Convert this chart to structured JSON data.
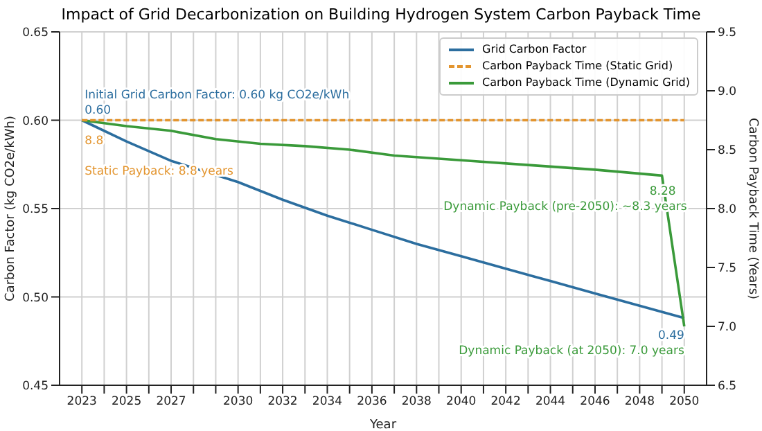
{
  "chart_data": {
    "type": "line",
    "title": "Impact of Grid Decarbonization on Building Hydrogen System Carbon Payback Time",
    "xlabel": "Year",
    "ylabel": "Carbon Factor (kg CO2e/kWh)",
    "y2label": "Carbon Payback Time (Years)",
    "x": [
      2023,
      2025,
      2027,
      2030,
      2032,
      2034,
      2036,
      2038,
      2040,
      2042,
      2044,
      2046,
      2048,
      2050
    ],
    "series": [
      {
        "name": "Grid Carbon Factor",
        "color": "#2c6e9f",
        "values": [
          0.6,
          0.588,
          0.577,
          0.565,
          0.555,
          0.546,
          0.538,
          0.53,
          0.523,
          0.516,
          0.509,
          0.502,
          0.495,
          0.488
        ],
        "value_labels": [
          "0.60",
          null,
          null,
          null,
          null,
          null,
          null,
          null,
          null,
          null,
          null,
          null,
          null,
          "0.49"
        ]
      },
      {
        "name": "Carbon Payback Time (Static Grid)",
        "color": "#e3952f",
        "axis": "y2",
        "line_style": "dashed",
        "x": [
          2023,
          2050
        ],
        "values": [
          8.75,
          8.75
        ],
        "value_labels": [
          "8.8",
          null
        ]
      },
      {
        "name": "Carbon Payback Time (Dynamic Grid)",
        "color": "#3a9a3a",
        "axis": "y2",
        "x": [
          2023,
          2025,
          2027,
          2029,
          2031,
          2033,
          2035,
          2037,
          2040,
          2043,
          2046,
          2049,
          2050
        ],
        "values": [
          8.75,
          8.7,
          8.66,
          8.59,
          8.55,
          8.53,
          8.5,
          8.45,
          8.41,
          8.37,
          8.33,
          8.28,
          7.0
        ],
        "value_labels": [
          null,
          null,
          null,
          null,
          null,
          null,
          null,
          null,
          null,
          null,
          null,
          "8.28",
          null
        ]
      }
    ],
    "annotations": [
      "Initial Grid Carbon Factor: 0.60 kg CO2e/kWh",
      "Static Payback: 8.8 years",
      "Dynamic Payback (pre-2050): ~8.3 years",
      "Dynamic Payback (at 2050): 7.0 years"
    ],
    "xlim": [
      2022,
      2051
    ],
    "xticks": [
      2023,
      {
        "value": 2024,
        "label": null
      },
      2025,
      {
        "value": 2026,
        "label": null
      },
      2027,
      {
        "value": 2028,
        "label": null
      },
      {
        "value": 2029,
        "label": null
      },
      2030,
      {
        "value": 2031,
        "label": null
      },
      2032,
      {
        "value": 2033,
        "label": null
      },
      2034,
      {
        "value": 2035,
        "label": null
      },
      2036,
      {
        "value": 2037,
        "label": null
      },
      2038,
      {
        "value": 2039,
        "label": null
      },
      2040,
      {
        "value": 2041,
        "label": null
      },
      2042,
      {
        "value": 2043,
        "label": null
      },
      2044,
      {
        "value": 2045,
        "label": null
      },
      2046,
      {
        "value": 2047,
        "label": null
      },
      2048,
      {
        "value": 2049,
        "label": null
      },
      2050
    ],
    "ylim": [
      0.45,
      0.65
    ],
    "yticks": [
      0.45,
      {
        "value": 0.5,
        "label": "0.50"
      },
      0.55,
      {
        "value": 0.6,
        "label": "0.60"
      },
      0.65
    ],
    "y2lim": [
      6.5,
      9.5
    ],
    "y2ticks": [
      6.5,
      {
        "value": 7,
        "label": "7.0"
      },
      7.5,
      {
        "value": 8,
        "label": "8.0"
      },
      8.5,
      {
        "value": 9,
        "label": "9.0"
      },
      9.5
    ],
    "grid": true,
    "legend": "top right"
  }
}
